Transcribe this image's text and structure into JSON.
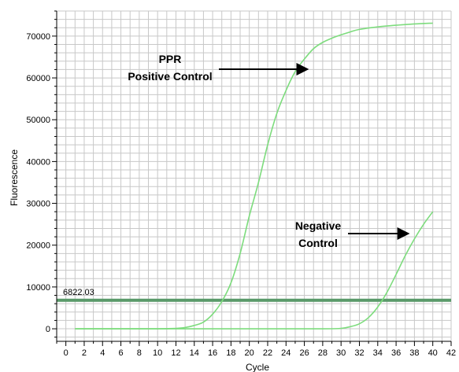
{
  "chart_data": {
    "type": "line",
    "title": "",
    "xlabel": "Cycle",
    "ylabel": "Fluorescence",
    "xlim": [
      -1,
      42
    ],
    "ylim": [
      -3000,
      76000
    ],
    "x_ticks": [
      0,
      2,
      4,
      6,
      8,
      10,
      12,
      14,
      16,
      18,
      20,
      22,
      24,
      26,
      28,
      30,
      32,
      34,
      36,
      38,
      40,
      42
    ],
    "y_ticks": [
      0,
      10000,
      20000,
      30000,
      40000,
      50000,
      60000,
      70000
    ],
    "grid": true,
    "threshold": {
      "label": "6822.03",
      "value": 6822.03
    },
    "colors": {
      "curve": "#7ddc7d",
      "threshold": "#5a9a6a",
      "grid": "#c8c8c8"
    },
    "series": [
      {
        "x": [
          1,
          4,
          8,
          10,
          12,
          13,
          14,
          15,
          16,
          17,
          18,
          19,
          20,
          21,
          22,
          23,
          24,
          25,
          26,
          27,
          28,
          29,
          30,
          31,
          32,
          34,
          36,
          38,
          40
        ],
        "values": [
          0,
          0,
          0,
          0,
          100,
          300,
          800,
          1600,
          3500,
          6500,
          11000,
          18000,
          27000,
          35000,
          44000,
          51500,
          57000,
          61500,
          64500,
          67000,
          68500,
          69500,
          70300,
          71000,
          71600,
          72200,
          72600,
          72900,
          73100
        ]
      },
      {
        "x": [
          1,
          10,
          20,
          28,
          30,
          31,
          32,
          33,
          34,
          35,
          36,
          37,
          38,
          39,
          40
        ],
        "values": [
          0,
          0,
          0,
          0,
          100,
          500,
          1200,
          2700,
          5200,
          8700,
          13000,
          17500,
          21500,
          25000,
          28000
        ]
      }
    ],
    "annotations": [
      {
        "lines": [
          "PPR",
          "Positive Control"
        ],
        "arrow_to": [
          26.5,
          62500
        ]
      },
      {
        "lines": [
          "Negative",
          "Control"
        ],
        "arrow_to": [
          37.5,
          22500
        ]
      }
    ]
  }
}
